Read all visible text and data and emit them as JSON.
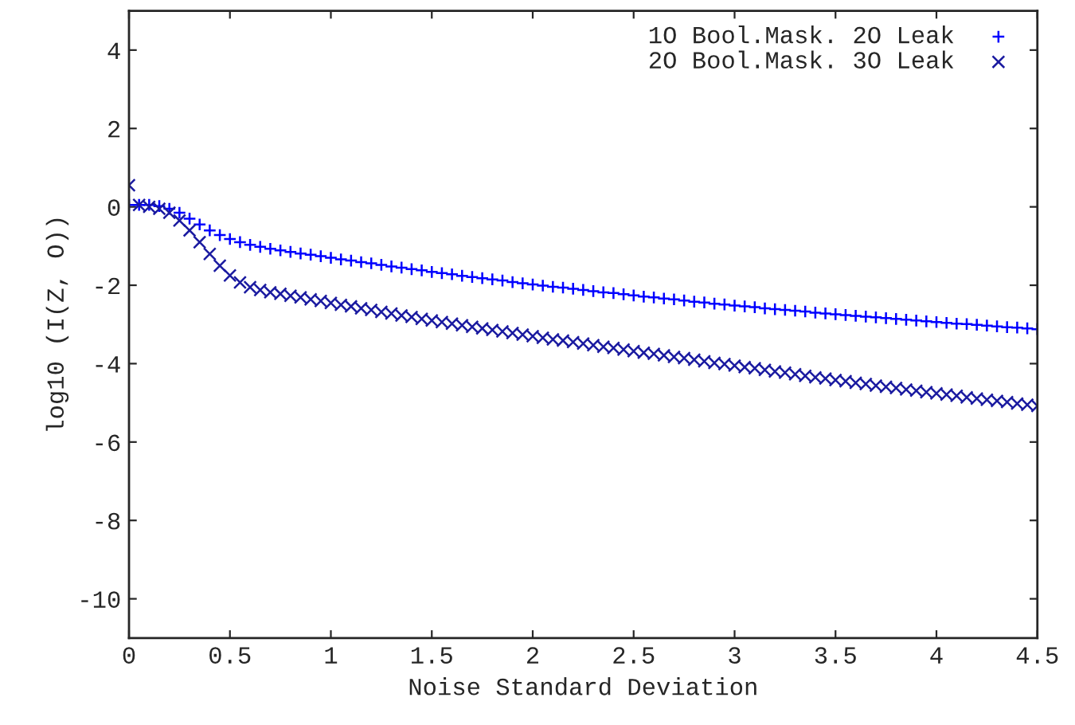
{
  "chart_data": {
    "type": "scatter",
    "xlabel": "Noise Standard Deviation",
    "ylabel": "log10 (I(Z, O))",
    "x": [
      0,
      0.05,
      0.1,
      0.15,
      0.2,
      0.25,
      0.3,
      0.35,
      0.4,
      0.45,
      0.5,
      0.55,
      0.6,
      0.65,
      0.7,
      0.75,
      0.8,
      0.85,
      0.9,
      0.95,
      1,
      1.05,
      1.1,
      1.15,
      1.2,
      1.25,
      1.3,
      1.35,
      1.4,
      1.45,
      1.5,
      1.55,
      1.6,
      1.65,
      1.7,
      1.75,
      1.8,
      1.85,
      1.9,
      1.95,
      2,
      2.05,
      2.1,
      2.15,
      2.2,
      2.25,
      2.3,
      2.35,
      2.4,
      2.45,
      2.5,
      2.55,
      2.6,
      2.65,
      2.7,
      2.75,
      2.8,
      2.85,
      2.9,
      2.95,
      3,
      3.05,
      3.1,
      3.15,
      3.2,
      3.25,
      3.3,
      3.35,
      3.4,
      3.45,
      3.5,
      3.55,
      3.6,
      3.65,
      3.7,
      3.75,
      3.8,
      3.85,
      3.9,
      3.95,
      4,
      4.05,
      4.1,
      4.15,
      4.2,
      4.25,
      4.3,
      4.35,
      4.4,
      4.45,
      4.5
    ],
    "series": [
      {
        "name": "1O Bool.Mask. 2O Leak",
        "color": "#0000ff",
        "marker": "plus",
        "values": [
          0.05,
          0.05,
          0.05,
          0.02,
          -0.05,
          -0.15,
          -0.3,
          -0.45,
          -0.6,
          -0.72,
          -0.82,
          -0.9,
          -0.97,
          -1.02,
          -1.07,
          -1.11,
          -1.15,
          -1.19,
          -1.22,
          -1.26,
          -1.3,
          -1.34,
          -1.37,
          -1.41,
          -1.44,
          -1.48,
          -1.52,
          -1.55,
          -1.59,
          -1.62,
          -1.66,
          -1.69,
          -1.72,
          -1.76,
          -1.79,
          -1.82,
          -1.85,
          -1.88,
          -1.92,
          -1.95,
          -1.98,
          -2.01,
          -2.04,
          -2.06,
          -2.09,
          -2.12,
          -2.15,
          -2.18,
          -2.2,
          -2.23,
          -2.26,
          -2.29,
          -2.31,
          -2.34,
          -2.36,
          -2.39,
          -2.42,
          -2.44,
          -2.47,
          -2.49,
          -2.52,
          -2.54,
          -2.56,
          -2.59,
          -2.61,
          -2.63,
          -2.65,
          -2.67,
          -2.7,
          -2.72,
          -2.74,
          -2.76,
          -2.78,
          -2.8,
          -2.82,
          -2.84,
          -2.86,
          -2.88,
          -2.9,
          -2.92,
          -2.94,
          -2.96,
          -2.98,
          -2.99,
          -3.01,
          -3.03,
          -3.05,
          -3.07,
          -3.08,
          -3.1,
          -3.12
        ]
      },
      {
        "name": "2O Bool.Mask. 3O Leak",
        "color": "#1a1aa0",
        "marker": "cross",
        "values": [
          0.55,
          0.05,
          0.0,
          -0.05,
          -0.15,
          -0.35,
          -0.6,
          -0.9,
          -1.2,
          -1.5,
          -1.75,
          -1.93,
          -2.05,
          -2.12,
          -2.18,
          -2.22,
          -2.27,
          -2.31,
          -2.36,
          -2.4,
          -2.45,
          -2.5,
          -2.54,
          -2.59,
          -2.63,
          -2.68,
          -2.72,
          -2.77,
          -2.81,
          -2.86,
          -2.9,
          -2.94,
          -2.98,
          -3.02,
          -3.06,
          -3.1,
          -3.14,
          -3.18,
          -3.22,
          -3.26,
          -3.3,
          -3.34,
          -3.38,
          -3.41,
          -3.45,
          -3.49,
          -3.53,
          -3.57,
          -3.6,
          -3.64,
          -3.68,
          -3.72,
          -3.75,
          -3.79,
          -3.83,
          -3.86,
          -3.9,
          -3.94,
          -3.98,
          -4.01,
          -4.05,
          -4.09,
          -4.12,
          -4.16,
          -4.2,
          -4.23,
          -4.27,
          -4.31,
          -4.35,
          -4.38,
          -4.42,
          -4.45,
          -4.49,
          -4.52,
          -4.56,
          -4.59,
          -4.62,
          -4.66,
          -4.69,
          -4.73,
          -4.76,
          -4.79,
          -4.82,
          -4.86,
          -4.89,
          -4.92,
          -4.95,
          -4.98,
          -5.02,
          -5.05,
          -5.08
        ]
      }
    ],
    "xlim": [
      0,
      4.5
    ],
    "xticks": [
      0,
      0.5,
      1,
      1.5,
      2,
      2.5,
      3,
      3.5,
      4,
      4.5
    ],
    "ylim": [
      -11,
      5
    ],
    "yticks": [
      -10,
      -8,
      -6,
      -4,
      -2,
      0,
      2,
      4
    ],
    "grid": false,
    "legend": "top right"
  }
}
